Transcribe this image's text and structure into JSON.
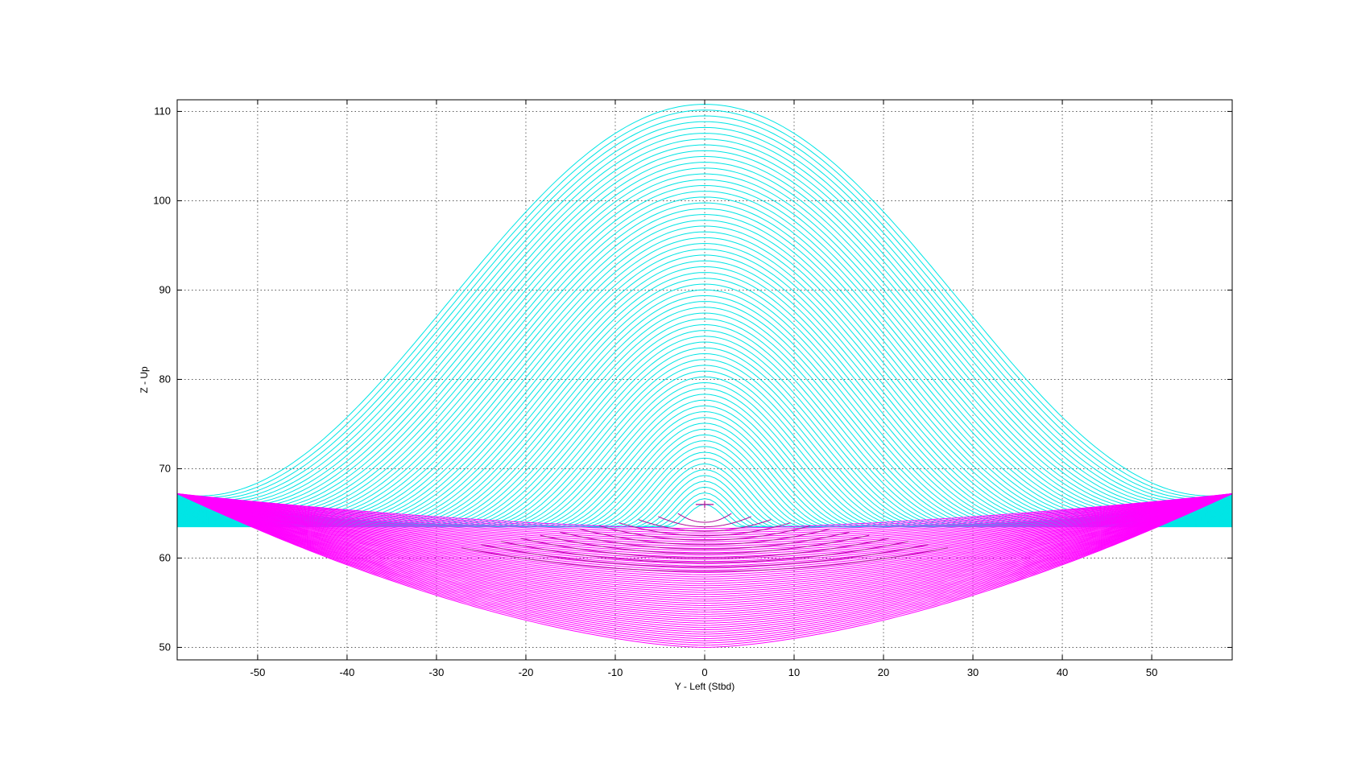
{
  "chart_data": {
    "type": "line",
    "title": "",
    "xlabel": "Y - Left (Stbd)",
    "ylabel": "Z - Up",
    "xlim": [
      -59,
      59
    ],
    "ylim": [
      48.6,
      111.3
    ],
    "xticks": [
      -50,
      -40,
      -30,
      -20,
      -10,
      0,
      10,
      20,
      30,
      40,
      50
    ],
    "yticks": [
      50,
      60,
      70,
      80,
      90,
      100,
      110
    ],
    "grid": true,
    "grid_style": "dotted",
    "colors": {
      "upper": "#00e5e5",
      "lower": "#ff00ff",
      "axis": "#000000",
      "grid": "#444444"
    },
    "series": [
      {
        "group": "upper",
        "color": "#00e5e5",
        "description_values": {
          "center_peak_range": [
            66,
            110.8
          ],
          "end_points": [
            [
              -59,
              67.2
            ],
            [
              59,
              67.2
            ]
          ],
          "base_level": 63.5
        }
      },
      {
        "group": "lower",
        "color": "#ff00ff",
        "description_values": {
          "center_range": [
            50,
            63.5
          ],
          "end_points": [
            [
              -59,
              67.2
            ],
            [
              59,
              67.2
            ]
          ]
        }
      }
    ]
  }
}
